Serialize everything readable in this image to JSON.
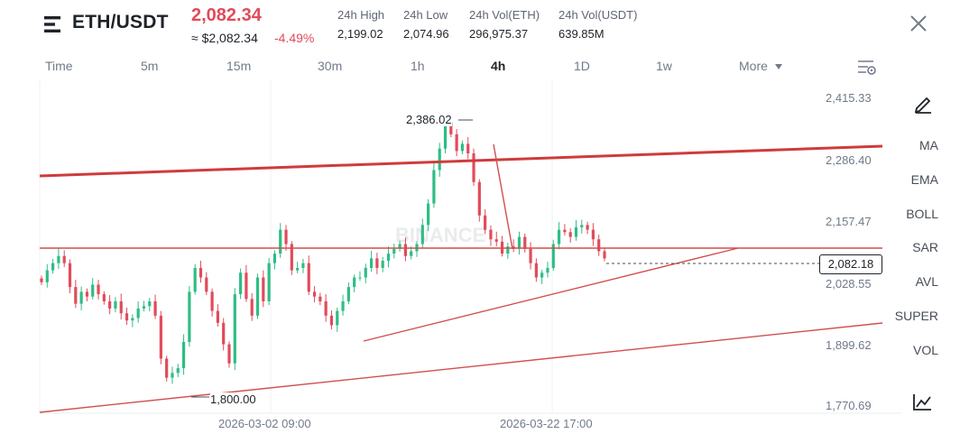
{
  "header": {
    "pair": "ETH/USDT",
    "last_price": "2,082.34",
    "approx_price": "≈ $2,082.34",
    "change_pct": "-4.49%",
    "stats": [
      {
        "label": "24h High",
        "value": "2,199.02"
      },
      {
        "label": "24h Low",
        "value": "2,074.96"
      },
      {
        "label": "24h Vol(ETH)",
        "value": "296,975.37"
      },
      {
        "label": "24h Vol(USDT)",
        "value": "639.85M"
      }
    ],
    "icons": {
      "logo": "menu-lines-icon",
      "close": "close-icon"
    }
  },
  "tabs": [
    {
      "label": "Time",
      "active": false
    },
    {
      "label": "5m",
      "active": false
    },
    {
      "label": "15m",
      "active": false
    },
    {
      "label": "30m",
      "active": false
    },
    {
      "label": "1h",
      "active": false
    },
    {
      "label": "4h",
      "active": true
    },
    {
      "label": "1D",
      "active": false
    },
    {
      "label": "1w",
      "active": false
    },
    {
      "label": "More",
      "active": false
    }
  ],
  "indicators": [
    "MA",
    "EMA",
    "BOLL",
    "SAR",
    "AVL",
    "SUPER",
    "VOL"
  ],
  "chart_data": {
    "type": "candlestick",
    "y_ticks": [
      "2,415.33",
      "2,286.40",
      "2,157.47",
      "2,028.55",
      "1,899.62",
      "1,770.69"
    ],
    "ylim": [
      1770.69,
      2415.33
    ],
    "x_ticks": [
      "2026-03-02 09:00",
      "2026-03-22 17:00"
    ],
    "last_price_label": "2,082.18",
    "high_label": "2,386.02",
    "low_label": "1,800.00",
    "watermark": "BINANCE",
    "colors": {
      "up": "#2ebd85",
      "down": "#e14b5a",
      "line": "#cf3b3b"
    },
    "closes": [
      2030,
      2055,
      2070,
      2085,
      2070,
      2020,
      1985,
      2010,
      2000,
      2025,
      2005,
      1990,
      1975,
      1990,
      1965,
      1950,
      1955,
      1975,
      1980,
      1990,
      1960,
      1870,
      1830,
      1840,
      1850,
      1905,
      2010,
      2060,
      2040,
      2010,
      1970,
      1945,
      1900,
      1860,
      2005,
      2050,
      1995,
      1960,
      2040,
      1990,
      2070,
      2090,
      2140,
      2110,
      2055,
      2060,
      2070,
      2010,
      2000,
      1990,
      1960,
      1940,
      1970,
      1990,
      2020,
      2040,
      2040,
      2060,
      2080,
      2060,
      2075,
      2090,
      2100,
      2110,
      2085,
      2095,
      2110,
      2150,
      2195,
      2265,
      2310,
      2365,
      2340,
      2305,
      2320,
      2300,
      2240,
      2170,
      2140,
      2120,
      2115,
      2090,
      2105,
      2100,
      2125,
      2100,
      2070,
      2040,
      2050,
      2060,
      2110,
      2140,
      2135,
      2125,
      2145,
      2150,
      2140,
      2120,
      2095,
      2080
    ]
  }
}
